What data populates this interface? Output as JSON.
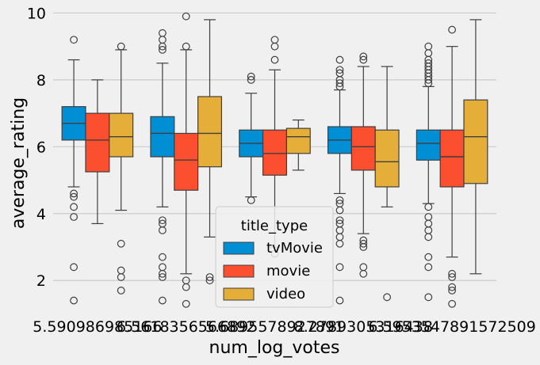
{
  "chart_data": {
    "type": "box",
    "xlabel": "num_log_votes",
    "ylabel": "average_rating",
    "ylim": [
      1.2,
      10.2
    ],
    "yticks": [
      2,
      4,
      6,
      8,
      10
    ],
    "grid": true,
    "categories": [
      "5.590986985166",
      "6.5618356566892",
      "5.6895578927891",
      "8.2789305316438",
      "6.5953547891572509"
    ],
    "series": [
      {
        "name": "tvMovie",
        "color": "#008fd5",
        "boxes": [
          {
            "q1": 6.2,
            "median": 6.7,
            "q3": 7.2,
            "whisker_low": 4.8,
            "whisker_high": 8.6,
            "outliers": [
              1.4,
              2.4,
              3.9,
              4.2,
              4.5,
              4.6,
              9.2
            ]
          },
          {
            "q1": 5.7,
            "median": 6.4,
            "q3": 6.9,
            "whisker_low": 4.2,
            "whisker_high": 8.5,
            "outliers": [
              1.4,
              2.1,
              2.2,
              2.4,
              2.7,
              3.5,
              3.7,
              3.8,
              8.9,
              9.0,
              9.2,
              9.4
            ]
          },
          {
            "q1": 5.7,
            "median": 6.1,
            "q3": 6.5,
            "whisker_low": 4.5,
            "whisker_high": 7.6,
            "outliers": [
              4.4,
              8.0,
              8.1
            ]
          },
          {
            "q1": 5.8,
            "median": 6.2,
            "q3": 6.6,
            "whisker_low": 4.6,
            "whisker_high": 7.7,
            "outliers": [
              1.4,
              2.4,
              3.1,
              3.3,
              3.5,
              3.7,
              3.8,
              4.1,
              4.3,
              4.4,
              7.8,
              7.9,
              8.0,
              8.2,
              8.3,
              8.6
            ]
          },
          {
            "q1": 5.6,
            "median": 6.1,
            "q3": 6.5,
            "whisker_low": 4.3,
            "whisker_high": 7.8,
            "outliers": [
              1.5,
              2.4,
              2.7,
              3.3,
              3.5,
              3.7,
              3.9,
              4.2,
              7.9,
              8.0,
              8.1,
              8.2,
              8.3,
              8.4,
              8.5,
              8.6,
              8.8,
              9.0
            ]
          }
        ]
      },
      {
        "name": "movie",
        "color": "#fc4f30",
        "boxes": [
          {
            "q1": 5.25,
            "median": 6.2,
            "q3": 7.0,
            "whisker_low": 3.7,
            "whisker_high": 8.0,
            "outliers": []
          },
          {
            "q1": 4.7,
            "median": 5.6,
            "q3": 6.4,
            "whisker_low": 2.2,
            "whisker_high": 8.9,
            "outliers": [
              1.3,
              1.8,
              2.0,
              9.0,
              9.9
            ]
          },
          {
            "q1": 5.15,
            "median": 5.8,
            "q3": 6.5,
            "whisker_low": 3.0,
            "whisker_high": 8.3,
            "outliers": [
              2.8,
              8.6,
              9.0,
              9.2
            ]
          },
          {
            "q1": 5.3,
            "median": 6.0,
            "q3": 6.6,
            "whisker_low": 3.4,
            "whisker_high": 8.4,
            "outliers": [
              2.2,
              2.4,
              3.0,
              3.1,
              3.2,
              8.6,
              8.7
            ]
          },
          {
            "q1": 4.8,
            "median": 5.7,
            "q3": 6.5,
            "whisker_low": 2.7,
            "whisker_high": 9.0,
            "outliers": [
              1.3,
              1.7,
              1.8,
              2.1,
              2.2,
              9.5
            ]
          }
        ]
      },
      {
        "name": "video",
        "color": "#e5ae38",
        "boxes": [
          {
            "q1": 5.7,
            "median": 6.3,
            "q3": 7.0,
            "whisker_low": 4.1,
            "whisker_high": 8.9,
            "outliers": [
              1.7,
              2.1,
              2.3,
              3.1,
              9.0
            ]
          },
          {
            "q1": 5.4,
            "median": 6.4,
            "q3": 7.5,
            "whisker_low": 3.3,
            "whisker_high": 9.8,
            "outliers": [
              2.0,
              2.1
            ]
          },
          {
            "q1": 5.8,
            "median": 6.3,
            "q3": 6.55,
            "whisker_low": 5.3,
            "whisker_high": 6.8,
            "outliers": []
          },
          {
            "q1": 4.8,
            "median": 5.55,
            "q3": 6.5,
            "whisker_low": 4.2,
            "whisker_high": 8.4,
            "outliers": [
              1.5
            ]
          },
          {
            "q1": 4.9,
            "median": 6.3,
            "q3": 7.4,
            "whisker_low": 2.2,
            "whisker_high": 9.8,
            "outliers": []
          }
        ]
      }
    ],
    "legend": {
      "title": "title_type",
      "placement": "lower-center",
      "entries": [
        "tvMovie",
        "movie",
        "video"
      ]
    }
  }
}
